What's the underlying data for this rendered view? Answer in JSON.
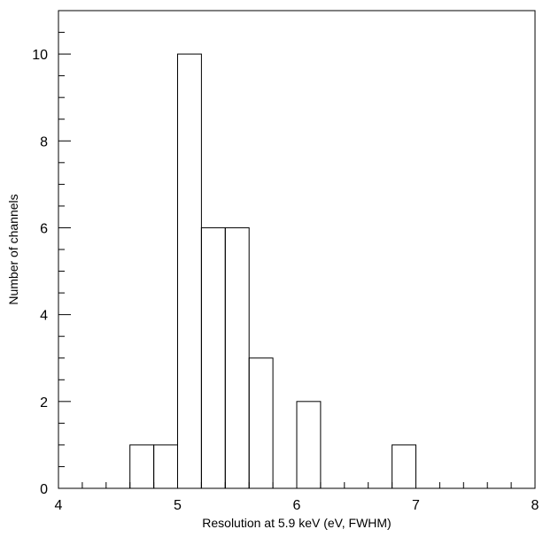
{
  "chart_data": {
    "type": "bar",
    "subtype": "histogram",
    "xlabel": "Resolution at 5.9 keV (eV, FWHM)",
    "ylabel": "Number of channels",
    "xlim": [
      4,
      8
    ],
    "ylim": [
      0,
      11
    ],
    "x_major_ticks": [
      "4",
      "5",
      "6",
      "7",
      "8"
    ],
    "y_major_ticks": [
      "0",
      "2",
      "4",
      "6",
      "8",
      "10"
    ],
    "bin_width": 0.2,
    "bins": [
      {
        "start": 4.6,
        "end": 4.8,
        "value": 1
      },
      {
        "start": 4.8,
        "end": 5.0,
        "value": 1
      },
      {
        "start": 5.0,
        "end": 5.2,
        "value": 10
      },
      {
        "start": 5.2,
        "end": 5.4,
        "value": 6
      },
      {
        "start": 5.4,
        "end": 5.6,
        "value": 6
      },
      {
        "start": 5.6,
        "end": 5.8,
        "value": 3
      },
      {
        "start": 6.0,
        "end": 6.2,
        "value": 2
      },
      {
        "start": 6.8,
        "end": 7.0,
        "value": 1
      }
    ],
    "grid": false,
    "legend": "none"
  }
}
